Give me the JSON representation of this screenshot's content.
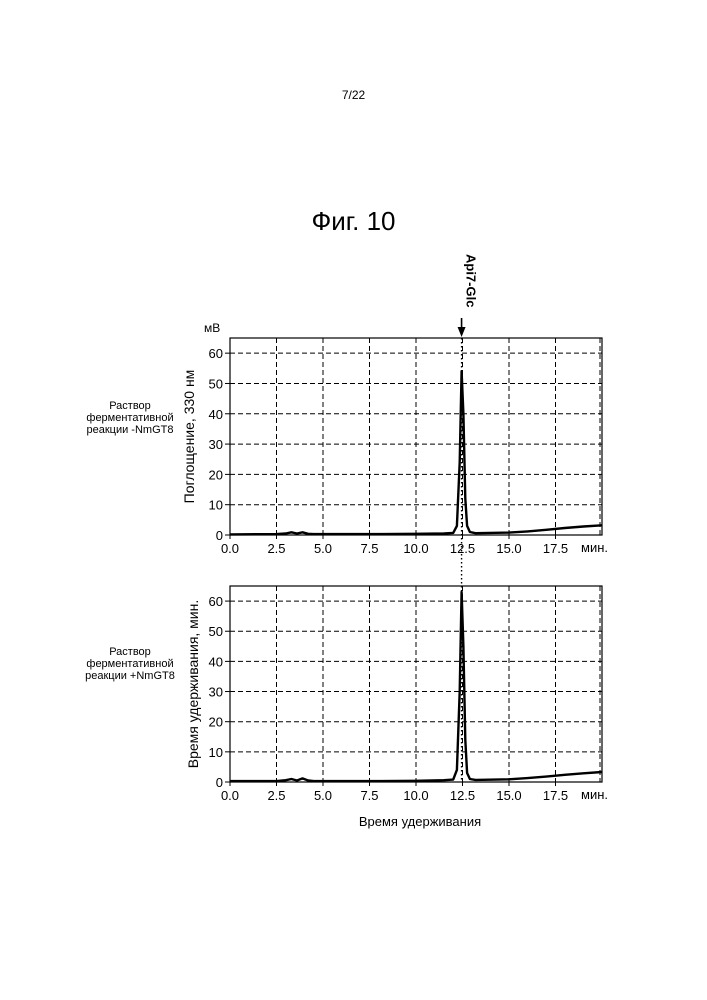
{
  "page_number": "7/22",
  "figure_title": "Фиг. 10",
  "peak_annotation": "Api7-Glc",
  "x_axis_title": "Время удерживания",
  "unit_mv": "мВ",
  "unit_min": "мин.",
  "chart_data": [
    {
      "type": "line",
      "panel_label": [
        "Раствор",
        "ферментативной",
        "реакции -NmGT8"
      ],
      "ylabel": "Поглощение, 330 нм",
      "xlim": [
        0,
        20
      ],
      "ylim": [
        0,
        65
      ],
      "x_ticks": [
        "0.0",
        "2.5",
        "5.0",
        "7.5",
        "10.0",
        "12.5",
        "15.0",
        "17.5"
      ],
      "y_ticks": [
        "0",
        "10",
        "20",
        "30",
        "40",
        "50",
        "60"
      ],
      "grid": true,
      "series": [
        {
          "x": [
            0,
            2.5,
            3.0,
            3.3,
            3.6,
            3.9,
            4.2,
            4.5,
            5.0,
            7.5,
            10.0,
            11.5,
            12.0,
            12.2,
            12.35,
            12.45,
            12.55,
            12.65,
            12.75,
            12.9,
            13.2,
            15.0,
            16.0,
            17.0,
            18.0,
            19.0,
            20.0
          ],
          "y": [
            0.2,
            0.3,
            0.5,
            0.9,
            0.5,
            0.9,
            0.4,
            0.3,
            0.3,
            0.3,
            0.4,
            0.5,
            0.7,
            3,
            24,
            54,
            40,
            12,
            3,
            1,
            0.6,
            0.8,
            1.2,
            1.7,
            2.3,
            2.8,
            3.2
          ]
        }
      ]
    },
    {
      "type": "line",
      "panel_label": [
        "Раствор",
        "ферментативной",
        "реакции +NmGT8"
      ],
      "ylabel": "Время удерживания, мин.",
      "xlim": [
        0,
        20
      ],
      "ylim": [
        0,
        65
      ],
      "x_ticks": [
        "0.0",
        "2.5",
        "5.0",
        "7.5",
        "10.0",
        "12.5",
        "15.0",
        "17.5"
      ],
      "y_ticks": [
        "0",
        "10",
        "20",
        "30",
        "40",
        "50",
        "60"
      ],
      "grid": true,
      "series": [
        {
          "x": [
            0,
            2.5,
            3.0,
            3.3,
            3.6,
            3.9,
            4.2,
            4.5,
            5.0,
            7.5,
            10.0,
            11.5,
            12.0,
            12.2,
            12.35,
            12.45,
            12.55,
            12.65,
            12.75,
            12.9,
            13.2,
            15.0,
            16.0,
            17.0,
            18.0,
            19.0,
            20.0
          ],
          "y": [
            0.3,
            0.3,
            0.6,
            1.0,
            0.5,
            1.2,
            0.5,
            0.3,
            0.3,
            0.3,
            0.4,
            0.6,
            0.8,
            4,
            30,
            63,
            45,
            14,
            3,
            1,
            0.7,
            0.9,
            1.3,
            1.8,
            2.4,
            2.9,
            3.3
          ]
        }
      ]
    }
  ]
}
